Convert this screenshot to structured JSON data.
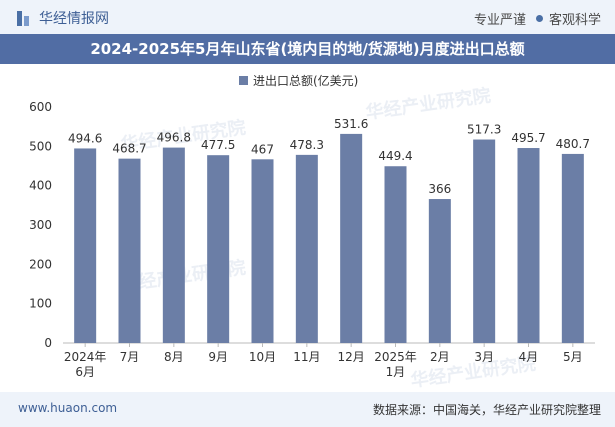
{
  "header": {
    "brand": "华经情报网",
    "tag1": "专业严谨",
    "tag2": "客观科学"
  },
  "title": "2024-2025年5月年山东省(境内目的地/货源地)月度进出口总额",
  "footer": {
    "website": "www.huaon.com",
    "source": "数据来源：中国海关，华经产业研究院整理"
  },
  "watermark": "华经产业研究院",
  "colors": {
    "bar": "#6b7ea6",
    "accent": "#516da4"
  },
  "chart_data": {
    "type": "bar",
    "title": "2024-2025年5月年山东省(境内目的地/货源地)月度进出口总额",
    "legend": "进出口总额(亿美元)",
    "categories": [
      [
        "2024年",
        "6月"
      ],
      [
        "7月"
      ],
      [
        "8月"
      ],
      [
        "9月"
      ],
      [
        "10月"
      ],
      [
        "11月"
      ],
      [
        "12月"
      ],
      [
        "2025年",
        "1月"
      ],
      [
        "2月"
      ],
      [
        "3月"
      ],
      [
        "4月"
      ],
      [
        "5月"
      ]
    ],
    "values": [
      494.6,
      468.7,
      496.8,
      477.5,
      467,
      478.3,
      531.6,
      449.4,
      366,
      517.3,
      495.7,
      480.7
    ],
    "ylim": [
      0,
      600
    ],
    "yticks": [
      0,
      100,
      200,
      300,
      400,
      500,
      600
    ],
    "xlabel": "",
    "ylabel": ""
  }
}
